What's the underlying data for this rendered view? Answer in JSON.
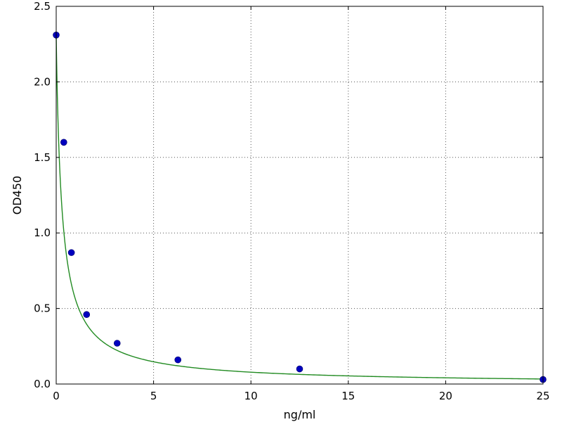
{
  "chart_data": {
    "type": "scatter",
    "title": "",
    "xlabel": "ng/ml",
    "ylabel": "OD450",
    "xlim": [
      0,
      25
    ],
    "ylim": [
      0,
      2.5
    ],
    "xticks": [
      0,
      5,
      10,
      15,
      20,
      25
    ],
    "yticks": [
      0.0,
      0.5,
      1.0,
      1.5,
      2.0,
      2.5
    ],
    "xtick_labels": [
      "0",
      "5",
      "10",
      "15",
      "20",
      "25"
    ],
    "ytick_labels": [
      "0.0",
      "0.5",
      "1.0",
      "1.5",
      "2.0",
      "2.5"
    ],
    "grid": true,
    "points": [
      {
        "x": 0,
        "y": 2.31
      },
      {
        "x": 0.39,
        "y": 1.6
      },
      {
        "x": 0.78,
        "y": 0.87
      },
      {
        "x": 1.56,
        "y": 0.46
      },
      {
        "x": 3.13,
        "y": 0.27
      },
      {
        "x": 6.25,
        "y": 0.16
      },
      {
        "x": 12.5,
        "y": 0.1
      },
      {
        "x": 25,
        "y": 0.03
      }
    ],
    "fit_curve": {
      "type": "4-parameter logistic",
      "A": 2.31,
      "D": 0,
      "C": 0.3,
      "B": 0.955
    },
    "colors": {
      "points": "#0000bf",
      "curve": "#228b22",
      "grid": "#555555",
      "axes": "#000000"
    }
  }
}
